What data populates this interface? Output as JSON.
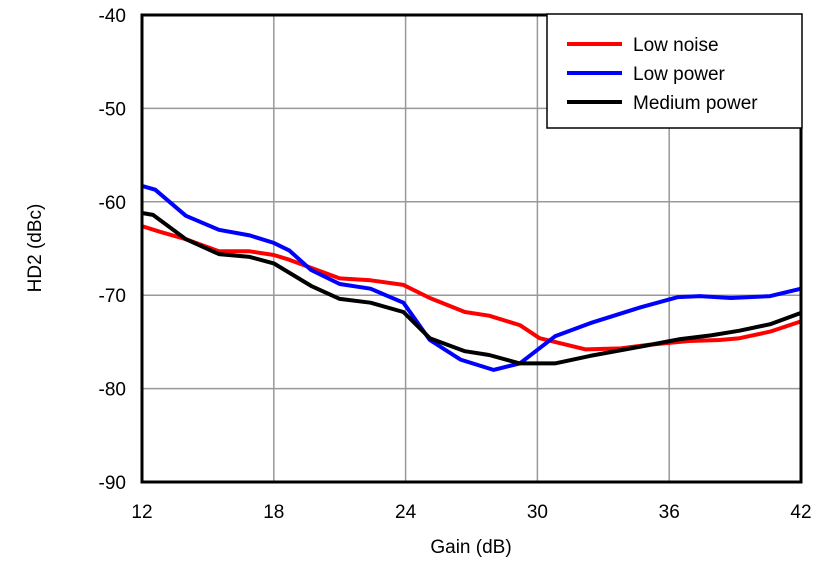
{
  "chart_data": {
    "type": "line",
    "title": "",
    "xlabel": "Gain (dB)",
    "ylabel": "HD2 (dBc)",
    "xlim": [
      12,
      42
    ],
    "ylim": [
      -90,
      -40
    ],
    "xticks": [
      12,
      18,
      24,
      30,
      36,
      42
    ],
    "yticks": [
      -90,
      -80,
      -70,
      -60,
      -50,
      -40
    ],
    "grid": true,
    "legend_position": "top-right",
    "series": [
      {
        "name": "Low noise",
        "color": "#ff0000",
        "x": [
          12,
          12.8,
          14,
          15.5,
          16.9,
          18,
          18.7,
          21,
          22.4,
          23.9,
          25.1,
          26.7,
          27.8,
          29.2,
          30.1,
          32.2,
          33.8,
          35.1,
          36.9,
          38.3,
          39.2,
          40.6,
          42
        ],
        "y": [
          -62.6,
          -63.2,
          -64,
          -65.3,
          -65.3,
          -65.7,
          -66.2,
          -68.2,
          -68.4,
          -68.9,
          -70.3,
          -71.8,
          -72.2,
          -73.2,
          -74.6,
          -75.8,
          -75.7,
          -75.3,
          -74.9,
          -74.8,
          -74.6,
          -73.9,
          -72.8
        ]
      },
      {
        "name": "Low power",
        "color": "#0000ff",
        "x": [
          12,
          12.6,
          14,
          15.5,
          16.9,
          18,
          18.7,
          19.7,
          21,
          22.4,
          23.9,
          25.1,
          26.5,
          28,
          29.2,
          30.8,
          32.4,
          34.7,
          36.4,
          37.4,
          38.8,
          40.6,
          42
        ],
        "y": [
          -58.3,
          -58.7,
          -61.5,
          -63,
          -63.6,
          -64.4,
          -65.2,
          -67.3,
          -68.8,
          -69.3,
          -70.8,
          -74.8,
          -76.9,
          -78,
          -77.3,
          -74.4,
          -73,
          -71.3,
          -70.2,
          -70.1,
          -70.3,
          -70.1,
          -69.3
        ]
      },
      {
        "name": "Medium power",
        "color": "#000000",
        "x": [
          12,
          12.5,
          14,
          15.5,
          16.9,
          18,
          19.7,
          21,
          22.4,
          23.9,
          25.1,
          26.7,
          27.8,
          29.2,
          30.8,
          32.4,
          34.7,
          36.5,
          37.9,
          39.2,
          40.6,
          42
        ],
        "y": [
          -61.2,
          -61.4,
          -64,
          -65.6,
          -65.9,
          -66.6,
          -69,
          -70.4,
          -70.8,
          -71.8,
          -74.6,
          -76,
          -76.4,
          -77.3,
          -77.3,
          -76.5,
          -75.5,
          -74.7,
          -74.3,
          -73.8,
          -73.1,
          -71.9
        ]
      }
    ]
  }
}
